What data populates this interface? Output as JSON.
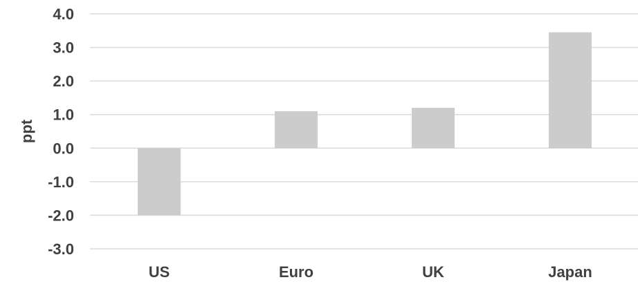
{
  "chart_data": {
    "type": "bar",
    "title": "",
    "xlabel": "",
    "ylabel": "ppt",
    "categories": [
      "US",
      "Euro",
      "UK",
      "Japan"
    ],
    "values": [
      -2.0,
      1.1,
      1.2,
      3.45
    ],
    "ylim": [
      -3.0,
      4.0
    ],
    "yticks": [
      "4.0",
      "3.0",
      "2.0",
      "1.0",
      "0.0",
      "-1.0",
      "-2.0",
      "-3.0"
    ],
    "grid": true,
    "legend": "none",
    "bar_color": "#cccccc",
    "grid_color": "#d9d9d9",
    "text_color": "#404040"
  }
}
